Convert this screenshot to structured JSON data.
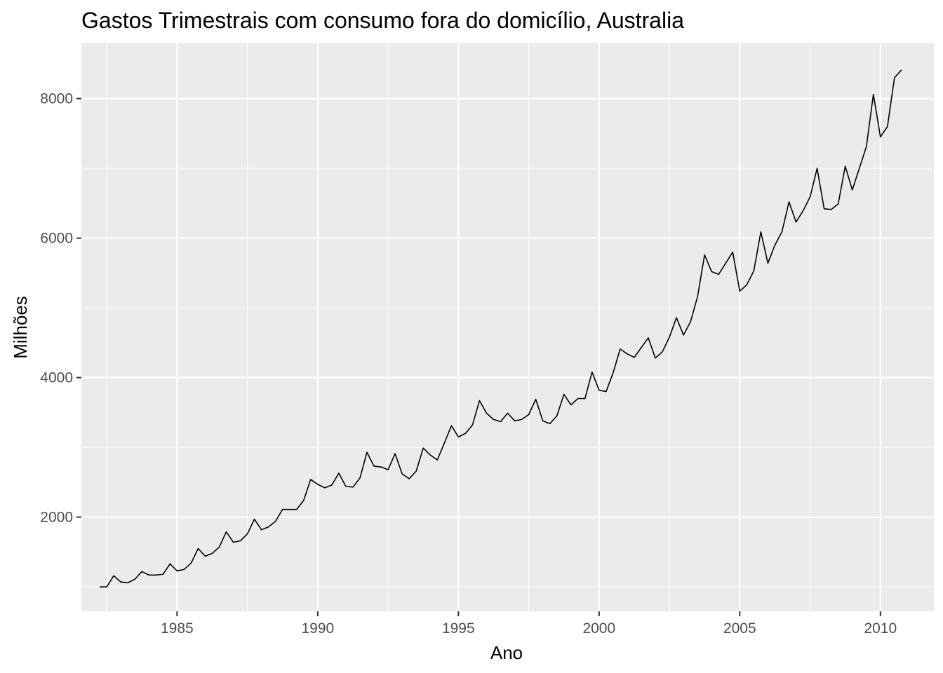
{
  "chart_data": {
    "type": "line",
    "title": "Gastos Trimestrais com consumo fora do domicílio, Australia",
    "xlabel": "Ano",
    "ylabel": "Milhões",
    "xlim": [
      1981.6,
      2011.9
    ],
    "ylim": [
      650,
      8800
    ],
    "x_ticks": [
      1985,
      1990,
      1995,
      2000,
      2005,
      2010
    ],
    "x_tick_labels": [
      "1985",
      "1990",
      "1995",
      "2000",
      "2005",
      "2010"
    ],
    "y_ticks": [
      2000,
      4000,
      6000,
      8000
    ],
    "y_tick_labels": [
      "2000",
      "4000",
      "6000",
      "8000"
    ],
    "grid": true,
    "background": "#ebebeb",
    "line_color": "#000000",
    "series": [
      {
        "x_start": 1982.25,
        "step": 0.25,
        "values": [
          1000,
          1000,
          1160,
          1070,
          1060,
          1110,
          1220,
          1170,
          1170,
          1180,
          1330,
          1230,
          1250,
          1340,
          1550,
          1440,
          1480,
          1570,
          1790,
          1640,
          1660,
          1760,
          1970,
          1820,
          1860,
          1940,
          2110,
          2110,
          2110,
          2240,
          2540,
          2470,
          2420,
          2460,
          2630,
          2440,
          2430,
          2560,
          2930,
          2730,
          2720,
          2680,
          2910,
          2620,
          2550,
          2660,
          2990,
          2890,
          2820,
          3060,
          3310,
          3150,
          3200,
          3320,
          3670,
          3490,
          3400,
          3370,
          3490,
          3380,
          3400,
          3470,
          3690,
          3380,
          3340,
          3450,
          3760,
          3610,
          3700,
          3700,
          4080,
          3820,
          3800,
          4070,
          4410,
          4340,
          4290,
          4430,
          4570,
          4280,
          4370,
          4580,
          4860,
          4610,
          4800,
          5160,
          5760,
          5520,
          5480,
          5640,
          5800,
          5240,
          5330,
          5530,
          6090,
          5640,
          5900,
          6090,
          6520,
          6230,
          6390,
          6590,
          7000,
          6420,
          6410,
          6490,
          7030,
          6690,
          7000,
          7310,
          8060,
          7450,
          7600,
          8300,
          8410
        ]
      }
    ]
  }
}
